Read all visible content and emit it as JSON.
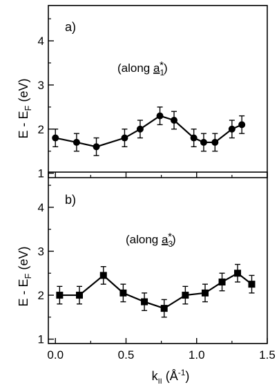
{
  "chart_data": [
    {
      "type": "line",
      "panel_label": "a)",
      "annotation": {
        "text": "(along ",
        "vector": "a",
        "sub": "1",
        "star": "*",
        "close": ")"
      },
      "ylabel": {
        "main": "E - E",
        "sub": "F",
        "unit": " (eV)"
      },
      "xlabel": "",
      "xlim": [
        -0.05,
        1.5
      ],
      "ylim": [
        0.9,
        4.8
      ],
      "yticks": [
        1,
        2,
        3,
        4
      ],
      "yminor": [
        1.5,
        2.5,
        3.5,
        4.5
      ],
      "xticks": [
        0.0,
        0.5,
        1.0,
        1.5
      ],
      "xtick_labels": [],
      "marker": "circle",
      "series": [
        {
          "x": [
            0.0,
            0.15,
            0.29,
            0.49,
            0.6,
            0.74,
            0.84,
            0.98,
            1.05,
            1.13,
            1.25,
            1.32
          ],
          "y": [
            1.8,
            1.7,
            1.6,
            1.8,
            2.0,
            2.3,
            2.2,
            1.8,
            1.7,
            1.7,
            2.0,
            2.1
          ],
          "err": [
            0.2,
            0.2,
            0.2,
            0.2,
            0.2,
            0.2,
            0.2,
            0.2,
            0.2,
            0.2,
            0.2,
            0.2
          ]
        }
      ],
      "grid": false
    },
    {
      "type": "line",
      "panel_label": "b)",
      "annotation": {
        "text": "(along ",
        "vector": "a",
        "sub": "3",
        "star": "*",
        "close": ")"
      },
      "ylabel": {
        "main": "E - E",
        "sub": "F",
        "unit": " (eV)"
      },
      "xlabel": {
        "main": "k",
        "sub": "II",
        "unit": " (Å",
        "exp": "-1",
        "close": ")"
      },
      "xlim": [
        -0.05,
        1.5
      ],
      "ylim": [
        0.9,
        4.8
      ],
      "yticks": [
        1,
        2,
        3,
        4
      ],
      "yminor": [
        1.5,
        2.5,
        3.5,
        4.5
      ],
      "xticks": [
        0.0,
        0.5,
        1.0,
        1.5
      ],
      "xtick_labels": [
        "0.0",
        "0.5",
        "1.0",
        "1.5"
      ],
      "marker": "square",
      "series": [
        {
          "x": [
            0.03,
            0.17,
            0.34,
            0.48,
            0.63,
            0.77,
            0.92,
            1.06,
            1.18,
            1.29,
            1.39
          ],
          "y": [
            2.0,
            2.0,
            2.45,
            2.05,
            1.85,
            1.7,
            2.0,
            2.05,
            2.3,
            2.5,
            2.25
          ],
          "err": [
            0.2,
            0.2,
            0.2,
            0.2,
            0.2,
            0.2,
            0.2,
            0.2,
            0.2,
            0.2,
            0.2
          ]
        }
      ],
      "grid": false
    }
  ]
}
